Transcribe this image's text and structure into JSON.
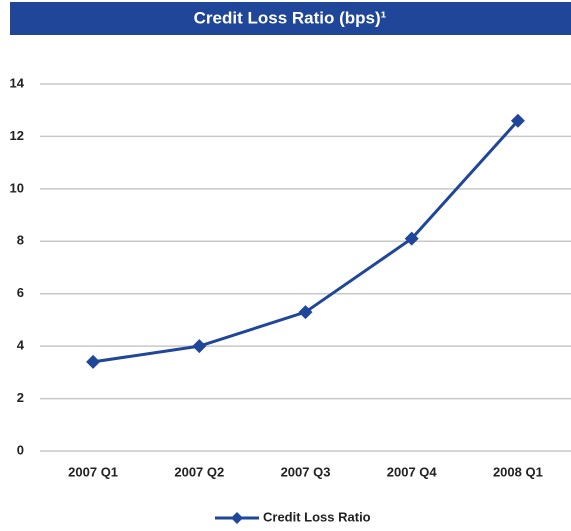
{
  "chart_data": {
    "type": "line",
    "title": "Credit Loss Ratio (bps)¹",
    "categories": [
      "2007 Q1",
      "2007 Q2",
      "2007 Q3",
      "2007 Q4",
      "2008 Q1"
    ],
    "series": [
      {
        "name": "Credit Loss Ratio",
        "color": "#1f4699",
        "values": [
          3.4,
          4.0,
          5.3,
          8.1,
          12.6
        ]
      }
    ],
    "ylim": [
      0,
      14
    ],
    "yticks": [
      0,
      2,
      4,
      6,
      8,
      10,
      12,
      14
    ],
    "grid": true,
    "legend": "bottom"
  }
}
